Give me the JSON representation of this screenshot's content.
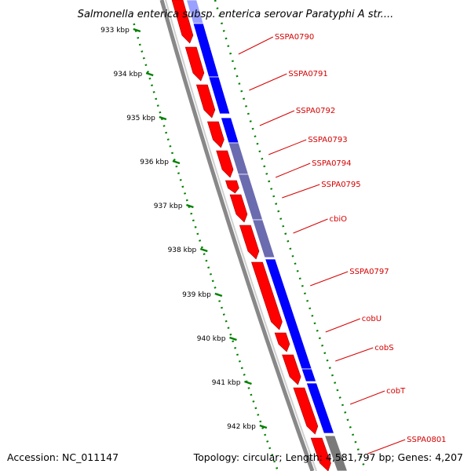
{
  "title": "Salmonella enterica subsp. enterica serovar Paratyphi A str....",
  "accession": "Accession: NC_011147",
  "summary": "Topology: circular; Length: 4,581,797 bp; Genes: 4,207",
  "colors": {
    "forward_strand": "#ff0000",
    "reverse_strand": "#0000ff",
    "overlap": "#6b6bb0",
    "backbone": "#888888",
    "tick": "#008000",
    "label": "#d40000"
  },
  "scale_ticks": [
    "933 kbp",
    "934 kbp",
    "935 kbp",
    "936 kbp",
    "937 kbp",
    "938 kbp",
    "939 kbp",
    "940 kbp",
    "941 kbp",
    "942 kbp"
  ],
  "gene_labels": [
    "SSPA0790",
    "SSPA0791",
    "SSPA0792",
    "SSPA0793",
    "SSPA0794",
    "SSPA0795",
    "cbiO",
    "SSPA0797",
    "cobU",
    "cobS",
    "cobT",
    "SSPA0801"
  ]
}
